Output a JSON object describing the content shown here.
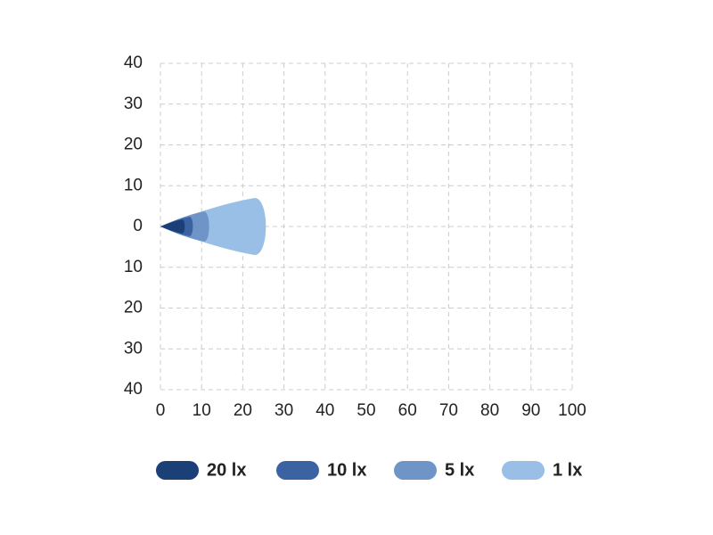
{
  "chart_data": {
    "type": "beam",
    "series": [
      {
        "name": "20 lx",
        "color": "#1b3f77",
        "distance": 6,
        "width": 1.7
      },
      {
        "name": "10 lx",
        "color": "#3b63a3",
        "distance": 8,
        "width": 2.4
      },
      {
        "name": "5 lx",
        "color": "#6f94c8",
        "distance": 12,
        "width": 3.7
      },
      {
        "name": "1 lx",
        "color": "#99bfe6",
        "distance": 26,
        "width": 7
      }
    ],
    "xlim": [
      0,
      100
    ],
    "xticks": [
      0,
      10,
      20,
      30,
      40,
      50,
      60,
      70,
      80,
      90,
      100
    ],
    "ylim": [
      -40,
      40
    ],
    "yticks": [
      {
        "value": -40,
        "label": "40"
      },
      {
        "value": -30,
        "label": "30"
      },
      {
        "value": -20,
        "label": "20"
      },
      {
        "value": -10,
        "label": "10"
      },
      0,
      10,
      20,
      30,
      40
    ],
    "grid": true,
    "legend": "bottom"
  }
}
